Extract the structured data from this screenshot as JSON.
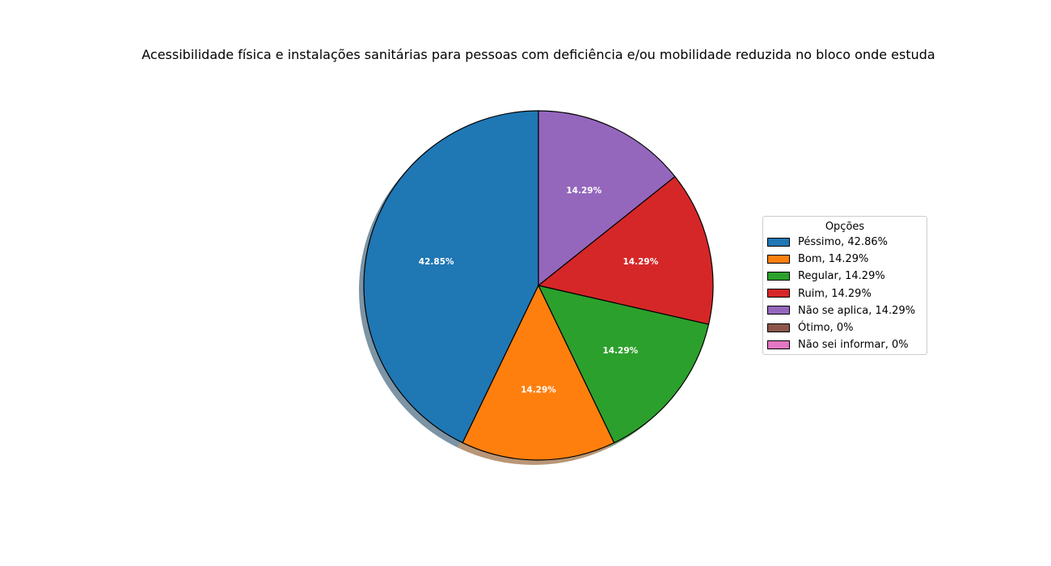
{
  "chart_data": {
    "type": "pie",
    "title": "Acessibilidade física e instalações sanitárias para pessoas com deficiência e/ou mobilidade reduzida no bloco onde estuda",
    "legend_title": "Opções",
    "legend_placement": "right",
    "shadow": true,
    "start_angle_deg": 90,
    "direction": "counterclockwise",
    "slices": [
      {
        "label": "Péssimo, 42.86%",
        "value": 42.86,
        "pct_label": "42.85%",
        "color": "#1f77b4"
      },
      {
        "label": "Bom, 14.29%",
        "value": 14.29,
        "pct_label": "14.29%",
        "color": "#ff7f0e"
      },
      {
        "label": "Regular, 14.29%",
        "value": 14.29,
        "pct_label": "14.29%",
        "color": "#2ca02c"
      },
      {
        "label": "Ruim, 14.29%",
        "value": 14.29,
        "pct_label": "14.29%",
        "color": "#d62728"
      },
      {
        "label": "Não se aplica, 14.29%",
        "value": 14.29,
        "pct_label": "14.29%",
        "color": "#9467bd"
      },
      {
        "label": "Ótimo, 0%",
        "value": 0,
        "pct_label": "",
        "color": "#8c564b"
      },
      {
        "label": "Não sei informar, 0%",
        "value": 0,
        "pct_label": "",
        "color": "#e377c2"
      }
    ]
  }
}
